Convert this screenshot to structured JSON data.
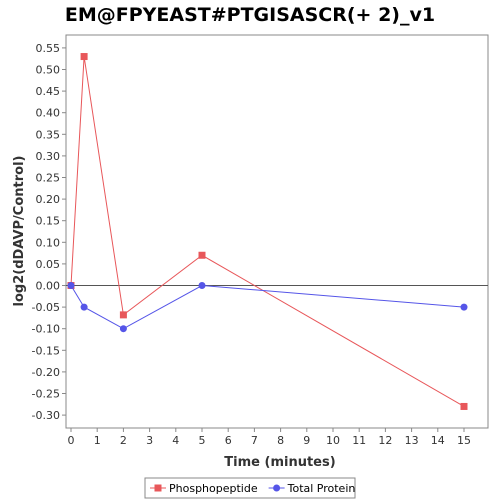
{
  "chart_data": {
    "type": "line",
    "title": "EM@FPYEAST#PTGISASCR(+ 2)_v1",
    "xlabel": "Time (minutes)",
    "ylabel": "log2(dDAVP/Control)",
    "xlim": [
      0,
      15.7
    ],
    "ylim": [
      -0.325,
      0.565
    ],
    "x_ticks": [
      0,
      1,
      2,
      3,
      4,
      5,
      6,
      7,
      8,
      9,
      10,
      11,
      12,
      13,
      14,
      15
    ],
    "y_ticks": [
      0.55,
      0.5,
      0.45,
      0.4,
      0.35,
      0.3,
      0.25,
      0.2,
      0.15,
      0.1,
      0.05,
      0.0,
      -0.05,
      -0.1,
      -0.15,
      -0.2,
      -0.25,
      -0.3
    ],
    "y_tick_labels": [
      "0.55",
      "0.50",
      "0.45",
      "0.40",
      "0.35",
      "0.30",
      "0.25",
      "0.20",
      "0.15",
      "0.10",
      "0.05",
      "0.00",
      "-0.05",
      "-0.10",
      "-0.15",
      "-0.20",
      "-0.25",
      "-0.30"
    ],
    "zero_line": true,
    "grid": false,
    "legend_position": "bottom",
    "series": [
      {
        "name": "Phosphopeptide",
        "color": "#e8575a",
        "marker": "square",
        "x": [
          0,
          0.5,
          2,
          5,
          15
        ],
        "y": [
          0.0,
          0.53,
          -0.068,
          0.07,
          -0.28
        ]
      },
      {
        "name": "Total Protein",
        "color": "#5555e8",
        "marker": "circle",
        "x": [
          0,
          0.5,
          2,
          5,
          15
        ],
        "y": [
          0.0,
          -0.05,
          -0.1,
          0.0,
          -0.05
        ]
      }
    ]
  }
}
